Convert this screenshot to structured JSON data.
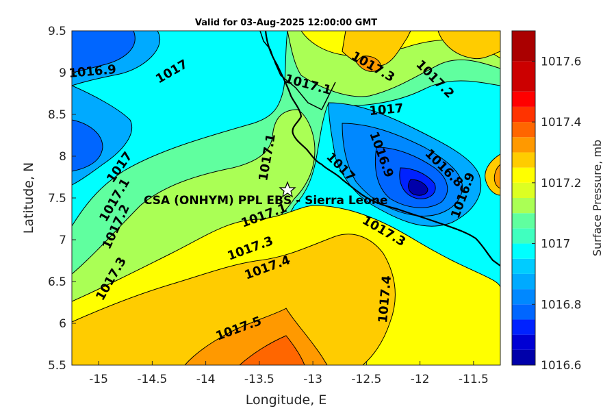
{
  "title": "Valid for 03-Aug-2025 12:00:00 GMT",
  "x_axis": {
    "label": "Longitude, E",
    "range": [
      -15.25,
      -11.25
    ],
    "ticks": [
      -15,
      -14.5,
      -14,
      -13.5,
      -13,
      -12.5,
      -12,
      -11.5
    ],
    "tick_labels": [
      "-15",
      "-14.5",
      "-14",
      "-13.5",
      "-13",
      "-12.5",
      "-12",
      "-11.5"
    ]
  },
  "y_axis": {
    "label": "Latitude, N",
    "range": [
      5.5,
      9.5
    ],
    "ticks": [
      5.5,
      6,
      6.5,
      7,
      7.5,
      8,
      8.5,
      9,
      9.5
    ],
    "tick_labels": [
      "5.5",
      "6",
      "6.5",
      "7",
      "7.5",
      "8",
      "8.5",
      "9",
      "9.5"
    ]
  },
  "colorbar": {
    "label": "Surface Pressure, mb",
    "range": [
      1016.6,
      1017.7
    ],
    "tick_labels": [
      "1017.6",
      "1017.4",
      "1017.2",
      "1017",
      "1016.8",
      "1016.6"
    ],
    "levels": [
      {
        "value": 1016.6,
        "color": "#0000aa"
      },
      {
        "value": 1016.65,
        "color": "#0000d4"
      },
      {
        "value": 1016.7,
        "color": "#0022ff"
      },
      {
        "value": 1016.75,
        "color": "#0066ff"
      },
      {
        "value": 1016.8,
        "color": "#0088ff"
      },
      {
        "value": 1016.85,
        "color": "#00aaff"
      },
      {
        "value": 1016.9,
        "color": "#00ccff"
      },
      {
        "value": 1016.95,
        "color": "#00ffff"
      },
      {
        "value": 1017.0,
        "color": "#40ffbf"
      },
      {
        "value": 1017.05,
        "color": "#60ff9f"
      },
      {
        "value": 1017.1,
        "color": "#aaff55"
      },
      {
        "value": 1017.15,
        "color": "#ddff22"
      },
      {
        "value": 1017.2,
        "color": "#ffff00"
      },
      {
        "value": 1017.25,
        "color": "#ffcc00"
      },
      {
        "value": 1017.3,
        "color": "#ff9900"
      },
      {
        "value": 1017.35,
        "color": "#ff6600"
      },
      {
        "value": 1017.4,
        "color": "#ff3300"
      },
      {
        "value": 1017.45,
        "color": "#ff0000"
      },
      {
        "value": 1017.5,
        "color": "#cc0000"
      },
      {
        "value": 1017.6,
        "color": "#aa0000"
      }
    ]
  },
  "contour_labels": [
    {
      "text": "1016.9"
    },
    {
      "text": "1017"
    },
    {
      "text": "1017.1"
    },
    {
      "text": "1017.3"
    },
    {
      "text": "1017.2"
    },
    {
      "text": "1017"
    },
    {
      "text": "1017.1"
    },
    {
      "text": "1017"
    },
    {
      "text": "1017.1"
    },
    {
      "text": "1017.2"
    },
    {
      "text": "1017.3"
    },
    {
      "text": "1017.4"
    },
    {
      "text": "1017.3"
    },
    {
      "text": "1017.5"
    },
    {
      "text": "1017.4"
    },
    {
      "text": "1016.9"
    },
    {
      "text": "1016.8"
    },
    {
      "text": "1016.9"
    },
    {
      "text": "1017.3"
    },
    {
      "text": "1017.1"
    },
    {
      "text": "1017"
    }
  ],
  "site": {
    "name": "CSA (ONHYM) PPL EBS  - Sierra Leone",
    "lon": -13.23,
    "lat": 7.58
  }
}
